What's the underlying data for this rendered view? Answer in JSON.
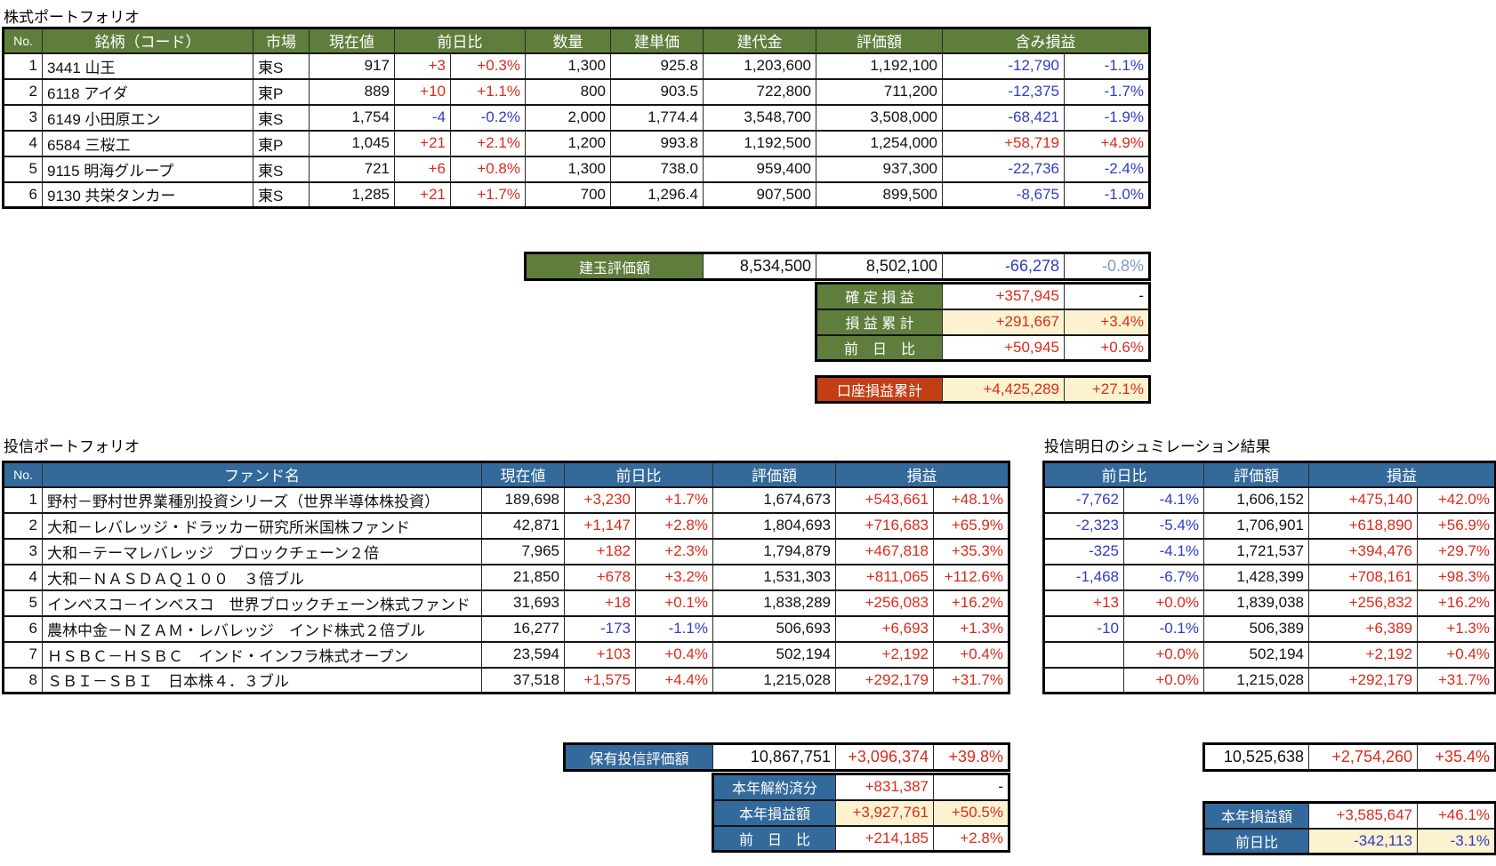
{
  "colors": {
    "green_header": "#5F7E3C",
    "blue_header": "#336A9B",
    "red_label": "#C23E16",
    "beige": "#FCF2CF",
    "text_red": "#D92B1B",
    "text_blue": "#2F3CC1",
    "muted_blue": "#7E9DC8"
  },
  "stock": {
    "title": "株式ポートフォリオ",
    "headers": {
      "no": "No.",
      "name": "銘柄（コード）",
      "market": "市場",
      "price": "現在値",
      "change": "前日比",
      "qty": "数量",
      "unit_price": "建単価",
      "cost": "建代金",
      "value": "評価額",
      "pl": "含み損益"
    },
    "rows": [
      [
        "1",
        "3441 山王",
        "東S",
        "917",
        "+3",
        "+0.3%",
        "1,300",
        "925.8",
        "1,203,600",
        "1,192,100",
        "-12,790",
        "-1.1%"
      ],
      [
        "2",
        "6118 アイダ",
        "東P",
        "889",
        "+10",
        "+1.1%",
        "800",
        "903.5",
        "722,800",
        "711,200",
        "-12,375",
        "-1.7%"
      ],
      [
        "3",
        "6149 小田原エン",
        "東S",
        "1,754",
        "-4",
        "-0.2%",
        "2,000",
        "1,774.4",
        "3,548,700",
        "3,508,000",
        "-68,421",
        "-1.9%"
      ],
      [
        "4",
        "6584 三桜工",
        "東P",
        "1,045",
        "+21",
        "+2.1%",
        "1,200",
        "993.8",
        "1,192,500",
        "1,254,000",
        "+58,719",
        "+4.9%"
      ],
      [
        "5",
        "9115 明海グループ",
        "東S",
        "721",
        "+6",
        "+0.8%",
        "1,300",
        "738.0",
        "959,400",
        "937,300",
        "-22,736",
        "-2.4%"
      ],
      [
        "6",
        "9130 共栄タンカー",
        "東S",
        "1,285",
        "+21",
        "+1.7%",
        "700",
        "1,296.4",
        "907,500",
        "899,500",
        "-8,675",
        "-1.0%"
      ]
    ],
    "total_rows": [
      {
        "label": "建玉評価額",
        "style": "green",
        "cells": [
          "8,534,500",
          "8,502,100",
          "-66,278",
          {
            "v": "-0.8%",
            "cls": "muted"
          }
        ]
      }
    ],
    "summary_rows": [
      {
        "label": "確 定 損 益",
        "style": "green",
        "cells": [
          "+357,945",
          "-"
        ]
      },
      {
        "label": "損 益 累 計",
        "style": "green",
        "beige": true,
        "cells": [
          "+291,667",
          "+3.4%"
        ]
      },
      {
        "label": "前　日　比",
        "style": "green",
        "cells": [
          "+50,945",
          "+0.6%"
        ]
      }
    ],
    "account_rows": [
      {
        "label": "口座損益累計",
        "style": "red",
        "beige": true,
        "cells": [
          "+4,425,289",
          "+27.1%"
        ]
      }
    ]
  },
  "fund": {
    "title": "投信ポートフォリオ",
    "headers": {
      "no": "No.",
      "name": "ファンド名",
      "price": "現在値",
      "change": "前日比",
      "value": "評価額",
      "pl": "損益"
    },
    "rows": [
      [
        "1",
        "野村－野村世界業種別投資シリーズ（世界半導体株投資）",
        "189,698",
        "+3,230",
        "+1.7%",
        "1,674,673",
        "+543,661",
        "+48.1%"
      ],
      [
        "2",
        "大和－レバレッジ・ドラッカー研究所米国株ファンド",
        "42,871",
        "+1,147",
        "+2.8%",
        "1,804,693",
        "+716,683",
        "+65.9%"
      ],
      [
        "3",
        "大和－テーマレバレッジ　ブロックチェーン２倍",
        "7,965",
        "+182",
        "+2.3%",
        "1,794,879",
        "+467,818",
        "+35.3%"
      ],
      [
        "4",
        "大和－ＮＡＳＤＡＱ１００　３倍ブル",
        "21,850",
        "+678",
        "+3.2%",
        "1,531,303",
        "+811,065",
        "+112.6%"
      ],
      [
        "5",
        "インベスコ－インベスコ　世界ブロックチェーン株式ファンド",
        "31,693",
        "+18",
        "+0.1%",
        "1,838,289",
        "+256,083",
        "+16.2%"
      ],
      [
        "6",
        "農林中金－ＮＺＡＭ・レバレッジ　インド株式２倍ブル",
        "16,277",
        "-173",
        "-1.1%",
        "506,693",
        "+6,693",
        "+1.3%"
      ],
      [
        "7",
        "ＨＳＢＣ－ＨＳＢＣ　インド・インフラ株式オープン",
        "23,594",
        "+103",
        "+0.4%",
        "502,194",
        "+2,192",
        "+0.4%"
      ],
      [
        "8",
        "ＳＢＩ－ＳＢＩ　日本株４．３ブル",
        "37,518",
        "+1,575",
        "+4.4%",
        "1,215,028",
        "+292,179",
        "+31.7%"
      ]
    ],
    "total_rows": [
      {
        "label": "保有投信評価額",
        "style": "blue",
        "cells": [
          "10,867,751",
          "+3,096,374",
          "+39.8%"
        ]
      }
    ],
    "summary_rows": [
      {
        "label": "本年解約済分",
        "style": "blue",
        "cells": [
          "+831,387",
          "-"
        ]
      },
      {
        "label": "本年損益額",
        "style": "blue",
        "beige": true,
        "cells": [
          "+3,927,761",
          "+50.5%"
        ]
      },
      {
        "label": "前　日　比",
        "style": "blue",
        "cells": [
          "+214,185",
          "+2.8%"
        ]
      }
    ]
  },
  "sim": {
    "title": "投信明日のシュミレーション結果",
    "headers": {
      "change": "前日比",
      "value": "評価額",
      "pl": "損益"
    },
    "rows": [
      [
        "-7,762",
        "-4.1%",
        "1,606,152",
        "+475,140",
        "+42.0%"
      ],
      [
        "-2,323",
        "-5.4%",
        "1,706,901",
        "+618,890",
        "+56.9%"
      ],
      [
        "-325",
        "-4.1%",
        "1,721,537",
        "+394,476",
        "+29.7%"
      ],
      [
        "-1,468",
        "-6.7%",
        "1,428,399",
        "+708,161",
        "+98.3%"
      ],
      [
        "+13",
        "+0.0%",
        "1,839,038",
        "+256,832",
        "+16.2%"
      ],
      [
        "-10",
        "-0.1%",
        "506,389",
        "+6,389",
        "+1.3%"
      ],
      [
        "",
        "+0.0%",
        "502,194",
        "+2,192",
        "+0.4%"
      ],
      [
        "",
        "+0.0%",
        "1,215,028",
        "+292,179",
        "+31.7%"
      ]
    ],
    "total_rows": [
      {
        "label": null,
        "cells": [
          "10,525,638",
          "+2,754,260",
          "+35.4%"
        ]
      }
    ],
    "summary_rows": [
      {
        "label": "本年損益額",
        "style": "blue",
        "cells": [
          "+3,585,647",
          "+46.1%"
        ]
      },
      {
        "label": "前日比",
        "style": "blue",
        "beige": true,
        "cells": [
          "-342,113",
          "-3.1%"
        ]
      }
    ]
  }
}
